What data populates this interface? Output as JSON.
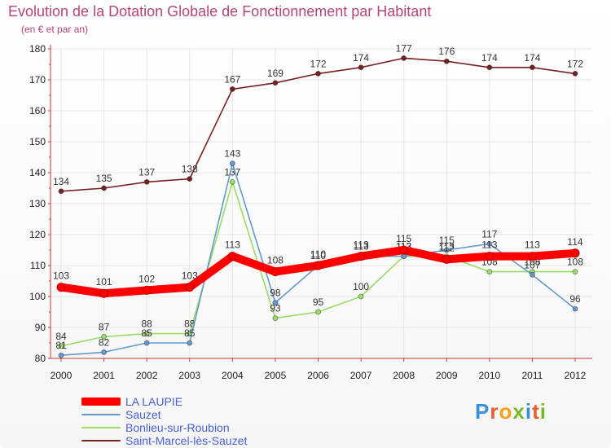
{
  "title": "Evolution de la Dotation Globale de Fonctionnement par Habitant",
  "subtitle": "(en € et par an)",
  "logo_text": "Proxiti",
  "chart_data": {
    "type": "line",
    "title": "Evolution de la Dotation Globale de Fonctionnement par Habitant",
    "ylabel": "(en € et par an)",
    "x": [
      2000,
      2001,
      2002,
      2003,
      2004,
      2005,
      2006,
      2007,
      2008,
      2009,
      2010,
      2011,
      2012
    ],
    "ylim": [
      80,
      180
    ],
    "yticks": [
      80,
      90,
      100,
      110,
      120,
      130,
      140,
      150,
      160,
      170,
      180
    ],
    "legend_position": "bottom",
    "series": [
      {
        "name": "Bonlieu-sur-Roubion",
        "color": "#99dd66",
        "values": [
          84,
          87,
          88,
          88,
          137,
          93,
          95,
          100,
          113,
          113,
          108,
          108,
          108
        ]
      },
      {
        "name": "Sauzet",
        "color": "#6699cc",
        "values": [
          81,
          82,
          85,
          85,
          143,
          98,
          110,
          113,
          113,
          115,
          117,
          107,
          96
        ]
      },
      {
        "name": "Saint-Marcel-lès-Sauzet",
        "color": "#772222",
        "values": [
          134,
          135,
          137,
          138,
          167,
          169,
          172,
          174,
          177,
          176,
          174,
          174,
          172
        ]
      },
      {
        "name": "LA LAUPIE",
        "color": "#ff0000",
        "values": [
          103,
          101,
          102,
          103,
          113,
          108,
          110,
          113,
          115,
          112,
          113,
          113,
          114
        ]
      }
    ],
    "legend": [
      "LA LAUPIE",
      "Sauzet",
      "Bonlieu-sur-Roubion",
      "Saint-Marcel-lès-Sauzet"
    ]
  }
}
